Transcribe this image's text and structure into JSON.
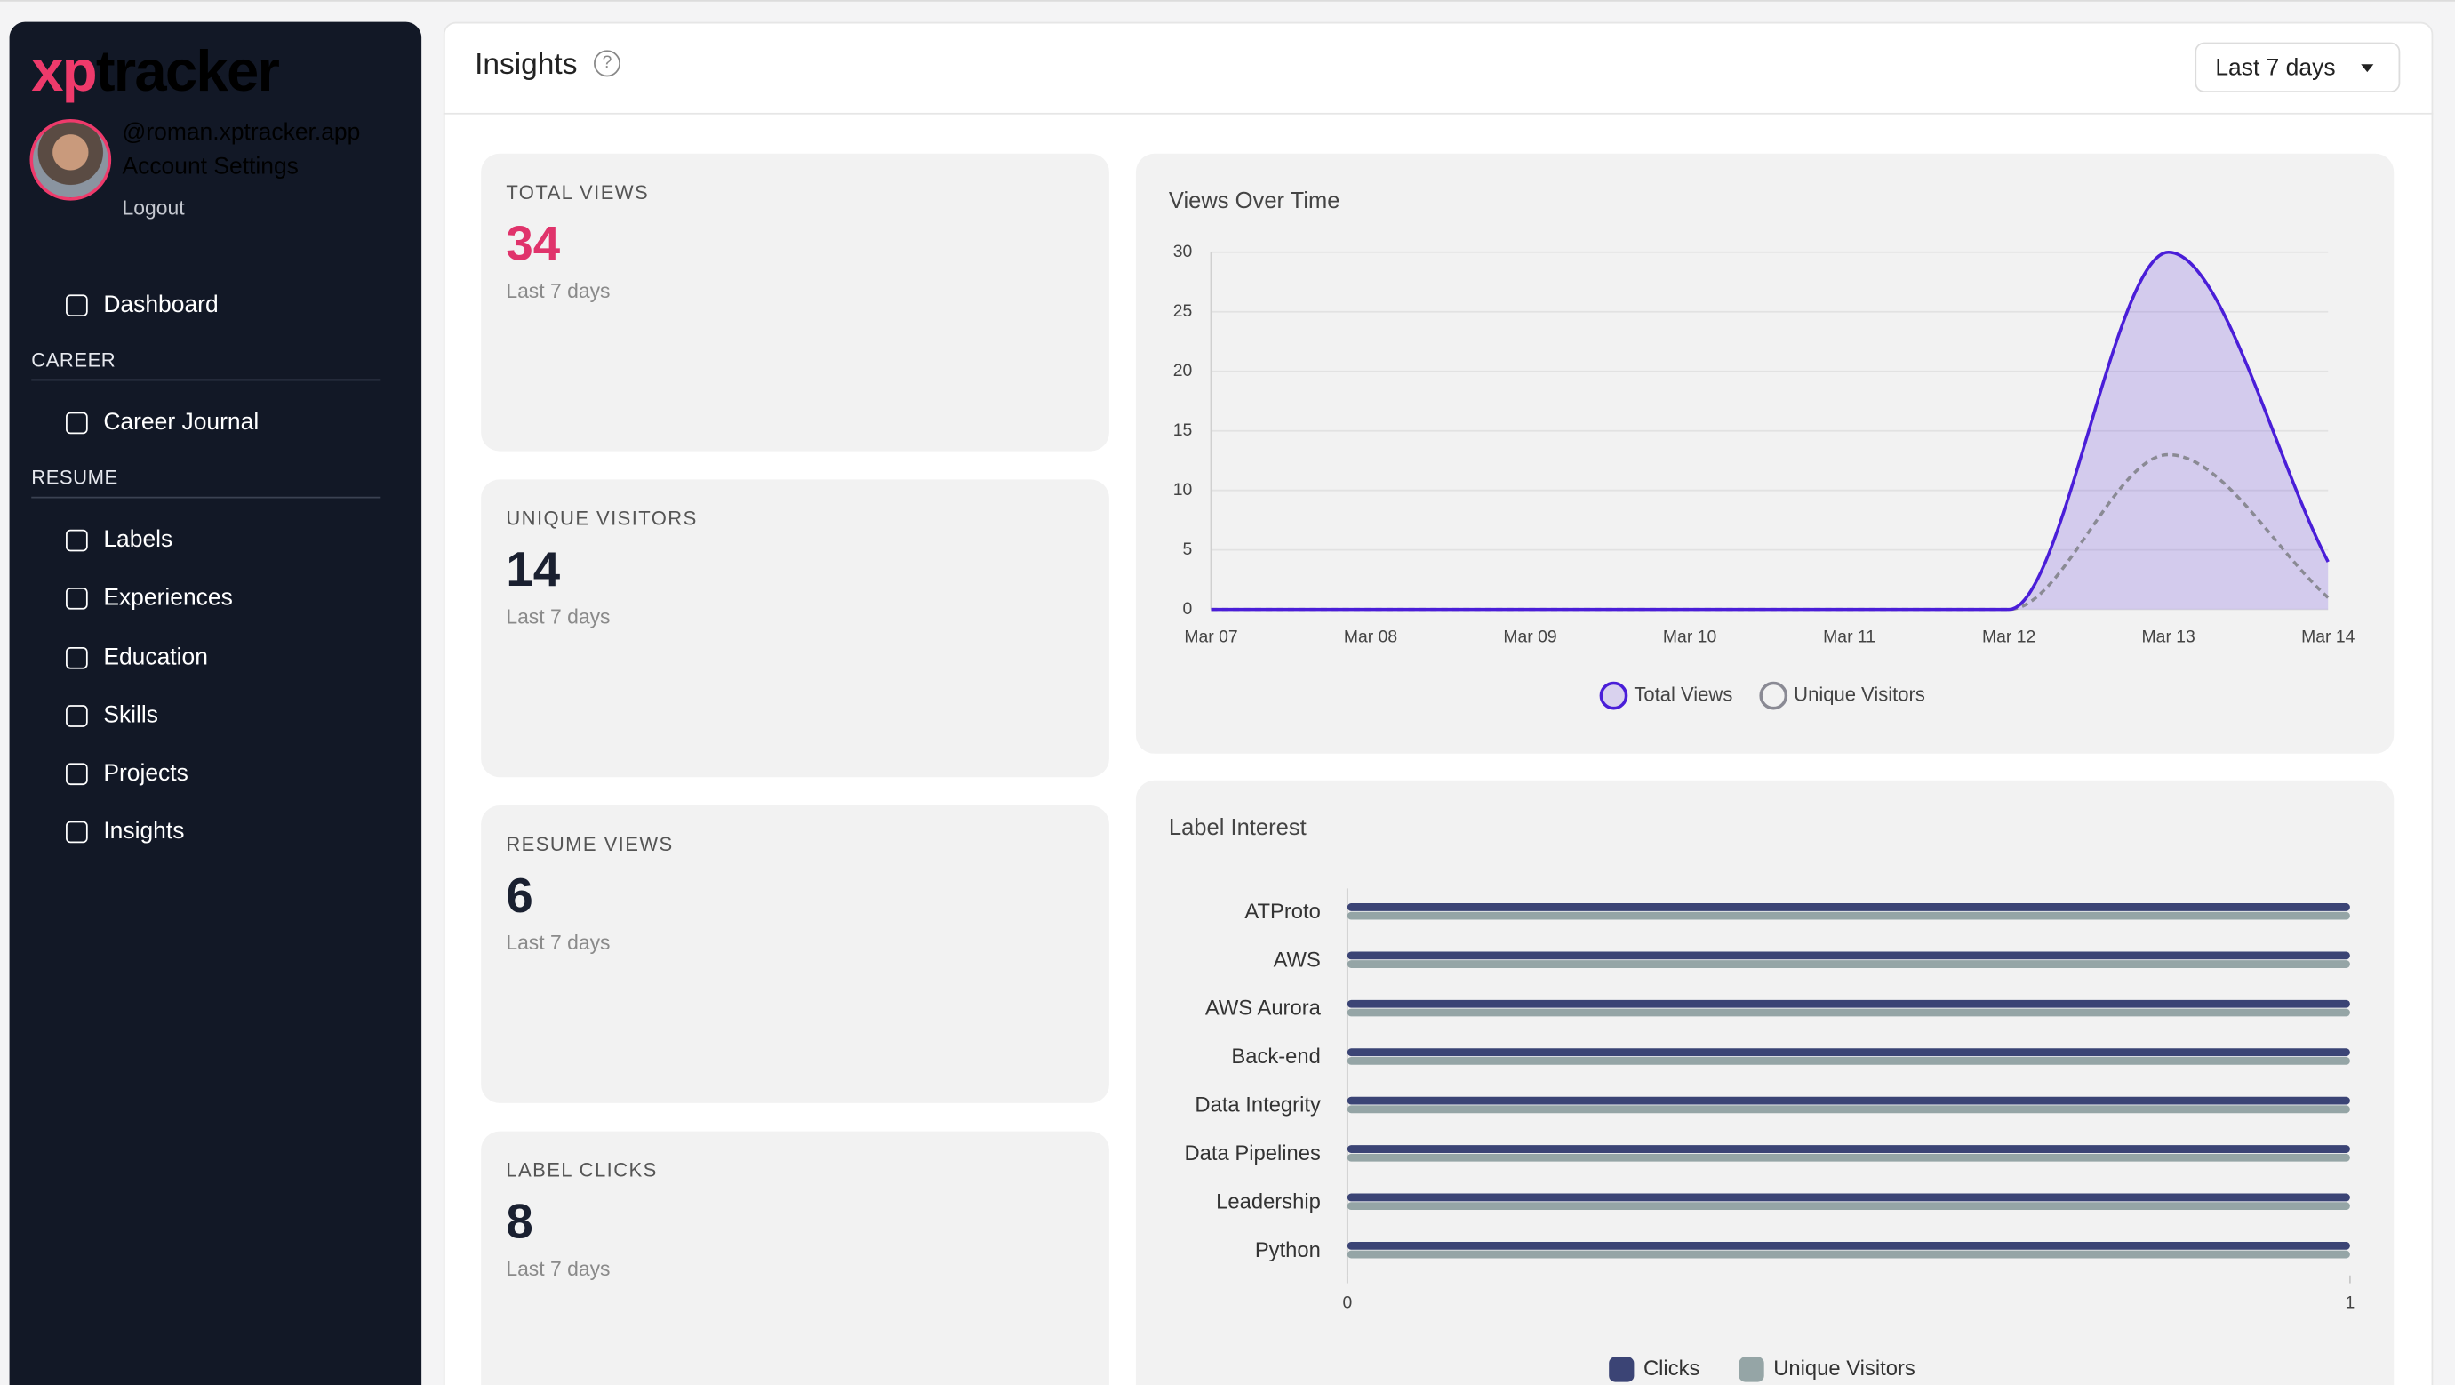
{
  "sidebar": {
    "logo": {
      "prefix": "xp",
      "suffix": "tracker"
    },
    "username": "@roman.xptracker.app",
    "account_settings": "Account Settings",
    "logout": "Logout",
    "dashboard": "Dashboard",
    "sections": [
      {
        "title": "CAREER",
        "items": [
          "Career Journal"
        ]
      },
      {
        "title": "RESUME",
        "items": [
          "Labels",
          "Experiences",
          "Education",
          "Skills",
          "Projects",
          "Insights"
        ]
      }
    ]
  },
  "header": {
    "title": "Insights",
    "help": "?",
    "range": "Last 7 days"
  },
  "stats": [
    {
      "label": "TOTAL VIEWS",
      "value": 34,
      "subtitle": "Last 7 days"
    },
    {
      "label": "UNIQUE VISITORS",
      "value": 14,
      "subtitle": "Last 7 days"
    },
    {
      "label": "RESUME VIEWS",
      "value": 6,
      "subtitle": "Last 7 days"
    },
    {
      "label": "LABEL CLICKS",
      "value": 8,
      "subtitle": "Last 7 days"
    }
  ],
  "chart_data": [
    {
      "type": "line",
      "title": "Views Over Time",
      "categories": [
        "Mar 07",
        "Mar 08",
        "Mar 09",
        "Mar 10",
        "Mar 11",
        "Mar 12",
        "Mar 13",
        "Mar 14"
      ],
      "series": [
        {
          "name": "Total Views",
          "color": "#4a1ed8",
          "values": [
            0,
            0,
            0,
            0,
            0,
            0,
            30,
            4
          ]
        },
        {
          "name": "Unique Visitors",
          "color": "#8a8a94",
          "values": [
            0,
            0,
            0,
            0,
            0,
            0,
            13,
            1
          ]
        }
      ],
      "ylim": [
        0,
        30
      ],
      "yticks": [
        0,
        5,
        10,
        15,
        20,
        25,
        30
      ],
      "grid": true
    },
    {
      "type": "hbar",
      "title": "Label Interest",
      "categories": [
        "ATProto",
        "AWS",
        "AWS Aurora",
        "Back-end",
        "Data Integrity",
        "Data Pipelines",
        "Leadership",
        "Python"
      ],
      "series": [
        {
          "name": "Clicks",
          "color": "#3b4475",
          "values": [
            1,
            1,
            1,
            1,
            1,
            1,
            1,
            1
          ]
        },
        {
          "name": "Unique Visitors",
          "color": "#95a5a6",
          "values": [
            1,
            1,
            1,
            1,
            1,
            1,
            1,
            1
          ]
        }
      ],
      "xlim": [
        0,
        1
      ],
      "xticks": [
        0,
        1
      ]
    }
  ]
}
